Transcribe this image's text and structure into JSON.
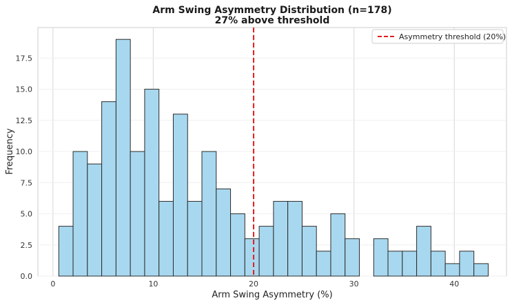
{
  "chart_data": {
    "type": "bar",
    "subtype": "histogram",
    "title": "Arm Swing Asymmetry Distribution (n=178)",
    "subtitle": "27% above threshold",
    "xlabel": "Arm Swing Asymmetry (%)",
    "ylabel": "Frequency",
    "xlim": [
      -1.5,
      45.2
    ],
    "ylim": [
      0,
      19.95
    ],
    "xticks": [
      0,
      10,
      20,
      30,
      40
    ],
    "yticks": [
      0.0,
      2.5,
      5.0,
      7.5,
      10.0,
      12.5,
      15.0,
      17.5
    ],
    "grid": true,
    "legend_position": "top-right",
    "threshold": {
      "name": "Asymmetry threshold (20%)",
      "x": 20,
      "color": "#e41a1c"
    },
    "bar_color": "#a8d8ef",
    "bar_edge_color": "#2b2b2b",
    "bins": {
      "x_start": 0.58,
      "bin_width": 1.4266,
      "counts": [
        4,
        10,
        9,
        14,
        19,
        10,
        15,
        6,
        13,
        6,
        10,
        7,
        5,
        3,
        4,
        6,
        6,
        4,
        2,
        5,
        3,
        0,
        3,
        2,
        2,
        4,
        2,
        1,
        2,
        1
      ]
    }
  }
}
